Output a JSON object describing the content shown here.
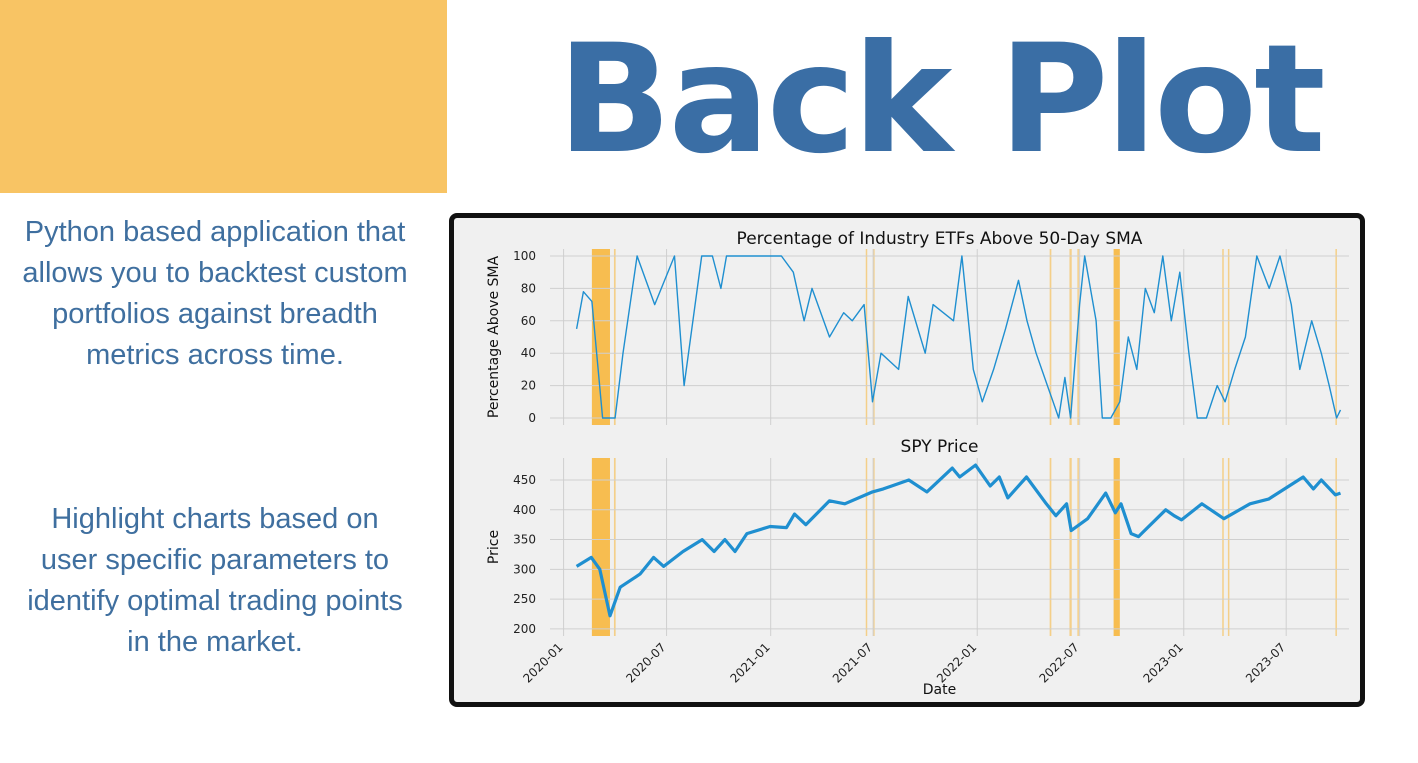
{
  "page": {
    "title": "Back Plot",
    "description_1": "Python based application that allows you to backtest custom portfolios against breadth metrics across time.",
    "description_2": "Highlight charts based on user specific parameters to identify optimal trading points in the market.",
    "colors": {
      "accent_block": "#F8C464",
      "title": "#3A6EA5",
      "text": "#3F6F9F",
      "line": "#1F8FD0",
      "highlight": "#F8B434"
    }
  },
  "chart_data": [
    {
      "type": "line",
      "title": "Percentage of Industry ETFs Above 50-Day SMA",
      "xlabel": "",
      "ylabel": "Percentage Above SMA",
      "ylim": [
        0,
        100
      ],
      "yticks": [
        0,
        20,
        40,
        60,
        80,
        100
      ],
      "grid": true,
      "x": [
        "2020-01-24",
        "2020-02-05",
        "2020-02-20",
        "2020-03-10",
        "2020-04-01",
        "2020-04-15",
        "2020-05-10",
        "2020-06-10",
        "2020-07-15",
        "2020-08-01",
        "2020-09-01",
        "2020-09-20",
        "2020-10-05",
        "2020-10-15",
        "2020-11-01",
        "2020-11-10",
        "2020-12-15",
        "2021-01-20",
        "2021-02-10",
        "2021-03-01",
        "2021-03-15",
        "2021-04-15",
        "2021-05-10",
        "2021-05-25",
        "2021-06-15",
        "2021-06-30",
        "2021-07-15",
        "2021-08-15",
        "2021-09-01",
        "2021-10-01",
        "2021-10-15",
        "2021-11-20",
        "2021-12-05",
        "2021-12-25",
        "2022-01-10",
        "2022-01-30",
        "2022-02-20",
        "2022-03-15",
        "2022-03-30",
        "2022-04-15",
        "2022-05-05",
        "2022-05-15",
        "2022-05-25",
        "2022-06-05",
        "2022-06-15",
        "2022-07-01",
        "2022-07-10",
        "2022-07-30",
        "2022-08-10",
        "2022-08-25",
        "2022-09-10",
        "2022-09-25",
        "2022-10-10",
        "2022-10-25",
        "2022-11-10",
        "2022-11-25",
        "2022-12-10",
        "2022-12-25",
        "2023-01-10",
        "2023-01-25",
        "2023-02-10",
        "2023-03-01",
        "2023-03-15",
        "2023-04-01",
        "2023-04-20",
        "2023-05-10",
        "2023-06-01",
        "2023-06-20",
        "2023-07-10",
        "2023-07-25",
        "2023-08-15",
        "2023-09-01",
        "2023-09-15",
        "2023-09-28",
        "2023-10-05"
      ],
      "series": [
        {
          "values": [
            55,
            78,
            72,
            0,
            0,
            40,
            100,
            70,
            100,
            20,
            100,
            100,
            80,
            100,
            100,
            100,
            100,
            100,
            90,
            60,
            80,
            50,
            65,
            60,
            70,
            10,
            40,
            30,
            75,
            40,
            70,
            60,
            100,
            30,
            10,
            30,
            55,
            85,
            60,
            40,
            20,
            10,
            0,
            25,
            0,
            70,
            100,
            60,
            0,
            0,
            10,
            50,
            30,
            80,
            65,
            100,
            60,
            90,
            40,
            0,
            0,
            20,
            10,
            30,
            50,
            100,
            80,
            100,
            70,
            30,
            60,
            40,
            20,
            0,
            5
          ]
        }
      ],
      "highlights": [
        [
          "2020-02-20",
          "2020-03-23"
        ],
        [
          "2020-03-30",
          "2020-04-02"
        ],
        [
          "2021-06-18",
          "2021-06-20"
        ],
        [
          "2021-07-01",
          "2021-07-03"
        ],
        [
          "2022-05-09",
          "2022-05-12"
        ],
        [
          "2022-06-13",
          "2022-06-17"
        ],
        [
          "2022-06-27",
          "2022-06-29"
        ],
        [
          "2022-08-30",
          "2022-09-10"
        ],
        [
          "2023-03-10",
          "2023-03-12"
        ],
        [
          "2023-03-20",
          "2023-03-22"
        ],
        [
          "2023-09-26",
          "2023-09-28"
        ]
      ]
    },
    {
      "type": "line",
      "title": "SPY Price",
      "xlabel": "Date",
      "ylabel": "Price",
      "ylim": [
        200,
        475
      ],
      "yticks": [
        200,
        250,
        300,
        350,
        400,
        450
      ],
      "xticks": [
        "2020-01",
        "2020-07",
        "2021-01",
        "2021-07",
        "2022-01",
        "2022-07",
        "2023-01",
        "2023-07"
      ],
      "grid": true,
      "x": [
        "2020-01-24",
        "2020-02-19",
        "2020-03-05",
        "2020-03-23",
        "2020-04-10",
        "2020-05-15",
        "2020-06-08",
        "2020-06-26",
        "2020-07-30",
        "2020-09-02",
        "2020-09-23",
        "2020-10-12",
        "2020-10-30",
        "2020-11-20",
        "2020-12-31",
        "2021-01-29",
        "2021-02-12",
        "2021-03-04",
        "2021-04-15",
        "2021-05-12",
        "2021-06-30",
        "2021-07-19",
        "2021-09-02",
        "2021-10-04",
        "2021-11-18",
        "2021-12-01",
        "2021-12-29",
        "2022-01-24",
        "2022-02-09",
        "2022-02-24",
        "2022-03-29",
        "2022-05-03",
        "2022-05-20",
        "2022-06-08",
        "2022-06-16",
        "2022-07-15",
        "2022-08-16",
        "2022-09-02",
        "2022-09-12",
        "2022-09-30",
        "2022-10-13",
        "2022-11-30",
        "2022-12-15",
        "2022-12-28",
        "2023-02-02",
        "2023-03-13",
        "2023-04-28",
        "2023-05-31",
        "2023-07-31",
        "2023-08-18",
        "2023-09-01",
        "2023-09-26",
        "2023-10-05"
      ],
      "series": [
        {
          "values": [
            305,
            320,
            300,
            222,
            270,
            292,
            320,
            305,
            330,
            350,
            330,
            350,
            330,
            360,
            372,
            370,
            393,
            375,
            415,
            410,
            430,
            435,
            450,
            430,
            470,
            455,
            475,
            440,
            455,
            420,
            455,
            410,
            390,
            410,
            365,
            385,
            428,
            395,
            410,
            360,
            355,
            400,
            390,
            383,
            410,
            385,
            410,
            418,
            455,
            435,
            450,
            425,
            428
          ]
        }
      ],
      "highlights": [
        [
          "2020-02-20",
          "2020-03-23"
        ],
        [
          "2020-03-30",
          "2020-04-02"
        ],
        [
          "2021-06-18",
          "2021-06-20"
        ],
        [
          "2021-07-01",
          "2021-07-03"
        ],
        [
          "2022-05-09",
          "2022-05-12"
        ],
        [
          "2022-06-13",
          "2022-06-17"
        ],
        [
          "2022-06-27",
          "2022-06-29"
        ],
        [
          "2022-08-30",
          "2022-09-10"
        ],
        [
          "2023-03-10",
          "2023-03-12"
        ],
        [
          "2023-03-20",
          "2023-03-22"
        ],
        [
          "2023-09-26",
          "2023-09-28"
        ]
      ]
    }
  ]
}
